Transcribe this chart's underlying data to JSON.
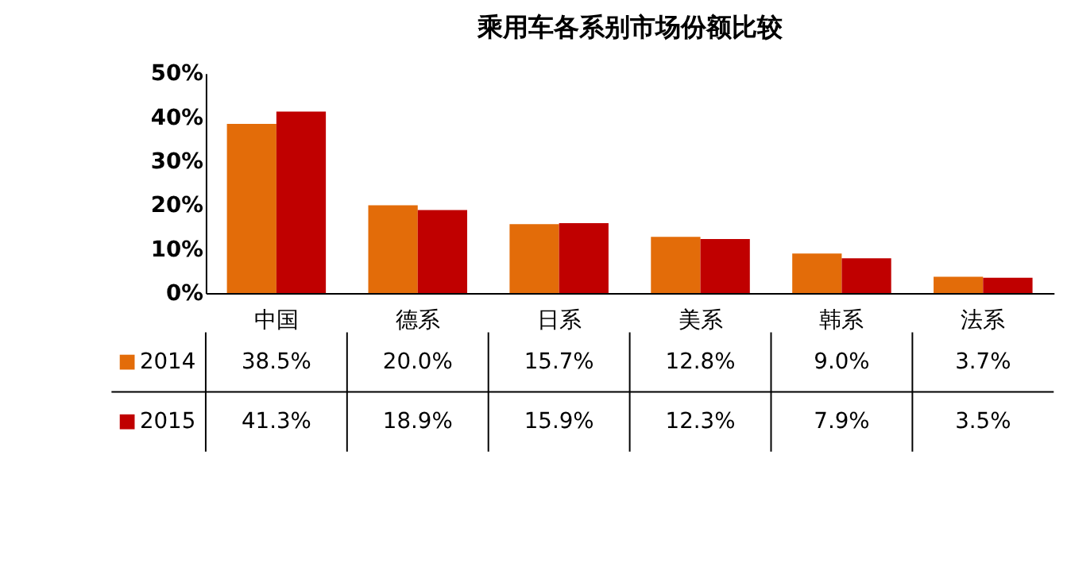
{
  "chart_data": {
    "type": "bar",
    "title": "乘用车各系别市场份额比较",
    "categories": [
      "中国",
      "德系",
      "日系",
      "美系",
      "韩系",
      "法系"
    ],
    "series": [
      {
        "name": "2014",
        "color": "#e36c09",
        "values": [
          38.5,
          20.0,
          15.7,
          12.8,
          9.0,
          3.7
        ],
        "value_labels": [
          "38.5%",
          "20.0%",
          "15.7%",
          "12.8%",
          "9.0%",
          "3.7%"
        ]
      },
      {
        "name": "2015",
        "color": "#c00000",
        "values": [
          41.3,
          18.9,
          15.9,
          12.3,
          7.9,
          3.5
        ],
        "value_labels": [
          "41.3%",
          "18.9%",
          "15.9%",
          "12.3%",
          "7.9%",
          "3.5%"
        ]
      }
    ],
    "ylim": [
      0,
      50
    ],
    "yticks": [
      {
        "value": 0,
        "label": "0%"
      },
      {
        "value": 10,
        "label": "10%"
      },
      {
        "value": 20,
        "label": "20%"
      },
      {
        "value": 30,
        "label": "30%"
      },
      {
        "value": 40,
        "label": "40%"
      },
      {
        "value": 50,
        "label": "50%"
      }
    ],
    "grid": false,
    "legend": "bottom left"
  }
}
